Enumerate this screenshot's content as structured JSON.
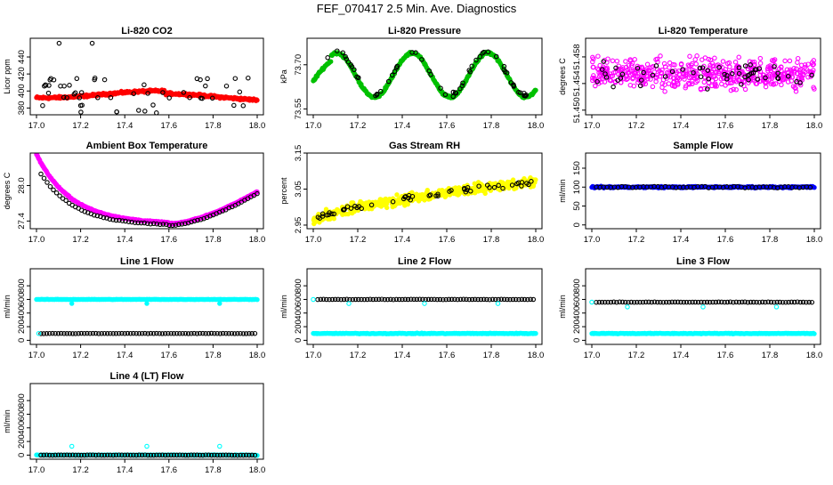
{
  "main_title": "FEF_070417  2.5 Min. Ave. Diagnostics",
  "chart_data": [
    {
      "id": "co2",
      "type": "scatter",
      "title": "Li-820 CO2",
      "ylabel": "Licor ppm",
      "x_ticks": [
        "17.0",
        "17.2",
        "17.4",
        "17.6",
        "17.8",
        "18.0"
      ],
      "xlim": [
        17.0,
        18.0
      ],
      "y_ticks": [
        {
          "v": 380,
          "label": "380"
        },
        {
          "v": 400,
          "label": "400"
        },
        {
          "v": 420,
          "label": "420"
        },
        {
          "v": 440,
          "label": "440"
        }
      ],
      "ylim": [
        372,
        462
      ],
      "series": [
        {
          "name": "main",
          "color": "#ff0000",
          "style": "filled",
          "gen": "co2_main"
        },
        {
          "name": "check",
          "color": "#000000",
          "style": "open",
          "gen": "co2_black"
        }
      ]
    },
    {
      "id": "pressure",
      "type": "scatter",
      "title": "Li-820 Pressure",
      "ylabel": "kPa",
      "x_ticks": [
        "17.0",
        "17.2",
        "17.4",
        "17.6",
        "17.8",
        "18.0"
      ],
      "xlim": [
        17.0,
        18.0
      ],
      "y_ticks": [
        {
          "v": 73.55,
          "label": "73.55"
        },
        {
          "v": 73.7,
          "label": "73.70"
        }
      ],
      "ylim": [
        73.53,
        73.79
      ],
      "series": [
        {
          "name": "main",
          "color": "#00c000",
          "style": "filled",
          "gen": "pres_main"
        },
        {
          "name": "check",
          "color": "#000000",
          "style": "open",
          "gen": "pres_black"
        }
      ]
    },
    {
      "id": "li_temp",
      "type": "scatter",
      "title": "Li-820 Temperature",
      "ylabel": "degrees C",
      "x_ticks": [
        "17.0",
        "17.2",
        "17.4",
        "17.6",
        "17.8",
        "18.0"
      ],
      "xlim": [
        17.0,
        18.0
      ],
      "y_ticks": [
        {
          "v": 51.45,
          "label": "51.450"
        },
        {
          "v": 51.454,
          "label": "51.454"
        },
        {
          "v": 51.458,
          "label": "51.458"
        }
      ],
      "ylim": [
        51.4493,
        51.4608
      ],
      "series": [
        {
          "name": "main",
          "color": "#ff00ff",
          "style": "open",
          "gen": "lit_main"
        },
        {
          "name": "check",
          "color": "#000000",
          "style": "open",
          "gen": "lit_black"
        }
      ]
    },
    {
      "id": "box_temp",
      "type": "scatter",
      "title": "Ambient Box Temperature",
      "ylabel": "degrees C",
      "x_ticks": [
        "17.0",
        "17.2",
        "17.4",
        "17.6",
        "17.8",
        "18.0"
      ],
      "xlim": [
        17.0,
        18.0
      ],
      "y_ticks": [
        {
          "v": 27.4,
          "label": "27.4"
        },
        {
          "v": 28.0,
          "label": "28.0"
        }
      ],
      "ylim": [
        27.27,
        28.55
      ],
      "series": [
        {
          "name": "main",
          "color": "#ff00ff",
          "style": "filled",
          "gen": "box_main"
        },
        {
          "name": "check",
          "color": "#000000",
          "style": "open",
          "gen": "box_black"
        }
      ]
    },
    {
      "id": "rh",
      "type": "scatter",
      "title": "Gas Stream RH",
      "ylabel": "percent",
      "x_ticks": [
        "17.0",
        "17.2",
        "17.4",
        "17.6",
        "17.8",
        "18.0"
      ],
      "xlim": [
        17.0,
        18.0
      ],
      "y_ticks": [
        {
          "v": 2.95,
          "label": "2.95"
        },
        {
          "v": 3.05,
          "label": "3.05"
        },
        {
          "v": 3.15,
          "label": "3.15"
        }
      ],
      "ylim": [
        2.94,
        3.15
      ],
      "series": [
        {
          "name": "main",
          "color": "#ffff00",
          "style": "filled",
          "gen": "rh_main"
        },
        {
          "name": "check",
          "color": "#000000",
          "style": "open",
          "gen": "rh_black"
        }
      ]
    },
    {
      "id": "sample_flow",
      "type": "scatter",
      "title": "Sample Flow",
      "ylabel": "ml/min",
      "x_ticks": [
        "17.0",
        "17.2",
        "17.4",
        "17.6",
        "17.8",
        "18.0"
      ],
      "xlim": [
        17.0,
        18.0
      ],
      "y_ticks": [
        {
          "v": 0,
          "label": "0"
        },
        {
          "v": 50,
          "label": "50"
        },
        {
          "v": 100,
          "label": "100"
        },
        {
          "v": 150,
          "label": "150"
        }
      ],
      "ylim": [
        -10,
        190
      ],
      "series": [
        {
          "name": "main",
          "color": "#0000ff",
          "style": "filled",
          "gen": "flat",
          "y": 100,
          "spread": 3
        },
        {
          "name": "check",
          "color": "#000000",
          "style": "open",
          "gen": "flat_sparse",
          "y": 100,
          "spread": 3
        }
      ]
    },
    {
      "id": "line1",
      "type": "scatter",
      "title": "Line 1 Flow",
      "ylabel": "ml/min",
      "x_ticks": [
        "17.0",
        "17.2",
        "17.4",
        "17.6",
        "17.8",
        "18.0"
      ],
      "xlim": [
        17.0,
        18.0
      ],
      "y_ticks": [
        {
          "v": 0,
          "label": "0"
        },
        {
          "v": 200,
          "label": "200"
        },
        {
          "v": 400,
          "label": "400"
        },
        {
          "v": 600,
          "label": "600"
        },
        {
          "v": 800,
          "label": "800"
        }
      ],
      "ylim": [
        -60,
        1050
      ],
      "series": [
        {
          "name": "main",
          "color": "#00ffff",
          "style": "filled",
          "gen": "flat_dips",
          "y": 600,
          "dip": 540
        },
        {
          "name": "check",
          "color": "#000000",
          "style": "open",
          "gen": "flat_dense",
          "y": 100
        },
        {
          "name": "low",
          "color": "#00ffff",
          "style": "open",
          "gen": "flat_start",
          "y": 100
        }
      ]
    },
    {
      "id": "line2",
      "type": "scatter",
      "title": "Line 2 Flow",
      "ylabel": "ml/min",
      "x_ticks": [
        "17.0",
        "17.2",
        "17.4",
        "17.6",
        "17.8",
        "18.0"
      ],
      "xlim": [
        17.0,
        18.0
      ],
      "y_ticks": [
        {
          "v": 0,
          "label": "0"
        },
        {
          "v": 200,
          "label": "200"
        },
        {
          "v": 400,
          "label": "400"
        },
        {
          "v": 600,
          "label": "600"
        },
        {
          "v": 800,
          "label": "800"
        }
      ],
      "ylim": [
        -60,
        1050
      ],
      "series": [
        {
          "name": "main",
          "color": "#00ffff",
          "style": "filled",
          "gen": "flat",
          "y": 100,
          "spread": 8
        },
        {
          "name": "check",
          "color": "#000000",
          "style": "open",
          "gen": "flat_dense",
          "y": 600
        },
        {
          "name": "high",
          "color": "#00ffff",
          "style": "open",
          "gen": "flat_dips_sparse",
          "y": 600,
          "dip": 540
        }
      ]
    },
    {
      "id": "line3",
      "type": "scatter",
      "title": "Line 3 Flow",
      "ylabel": "ml/min",
      "x_ticks": [
        "17.0",
        "17.2",
        "17.4",
        "17.6",
        "17.8",
        "18.0"
      ],
      "xlim": [
        17.0,
        18.0
      ],
      "y_ticks": [
        {
          "v": 0,
          "label": "0"
        },
        {
          "v": 200,
          "label": "200"
        },
        {
          "v": 400,
          "label": "400"
        },
        {
          "v": 600,
          "label": "600"
        },
        {
          "v": 800,
          "label": "800"
        }
      ],
      "ylim": [
        -60,
        1050
      ],
      "series": [
        {
          "name": "main",
          "color": "#00ffff",
          "style": "filled",
          "gen": "flat",
          "y": 100,
          "spread": 8
        },
        {
          "name": "check",
          "color": "#000000",
          "style": "open",
          "gen": "flat_dense",
          "y": 560
        },
        {
          "name": "high",
          "color": "#00ffff",
          "style": "open",
          "gen": "flat_dips_sparse",
          "y": 560,
          "dip": 490
        }
      ]
    },
    {
      "id": "line4",
      "type": "scatter",
      "title": "Line 4 (LT) Flow",
      "ylabel": "ml/min",
      "x_ticks": [
        "17.0",
        "17.2",
        "17.4",
        "17.6",
        "17.8",
        "18.0"
      ],
      "xlim": [
        17.0,
        18.0
      ],
      "y_ticks": [
        {
          "v": 0,
          "label": "0"
        },
        {
          "v": 200,
          "label": "200"
        },
        {
          "v": 400,
          "label": "400"
        },
        {
          "v": 600,
          "label": "600"
        },
        {
          "v": 800,
          "label": "800"
        }
      ],
      "ylim": [
        -60,
        1050
      ],
      "series": [
        {
          "name": "main",
          "color": "#00ffff",
          "style": "filled",
          "gen": "flat",
          "y": 0,
          "spread": 5
        },
        {
          "name": "check",
          "color": "#000000",
          "style": "open",
          "gen": "flat_dense",
          "y": 0
        },
        {
          "name": "spikes",
          "color": "#00ffff",
          "style": "open",
          "gen": "spikes",
          "y": 130
        }
      ]
    }
  ]
}
